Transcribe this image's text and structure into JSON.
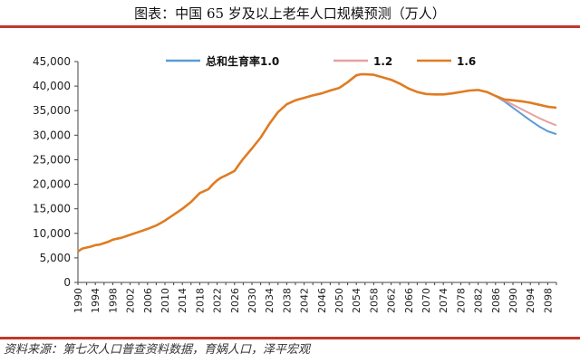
{
  "title": "图表：中国 65 岁及以上老年人口规模预测（万人）",
  "source": "资料来源：第七次人口普查资料数据，育娲人口，泽平宏观",
  "chart_data": {
    "type": "line",
    "ylim": [
      0,
      45000
    ],
    "yticks": [
      0,
      5000,
      10000,
      15000,
      20000,
      25000,
      30000,
      35000,
      40000,
      45000
    ],
    "ytick_labels": [
      "0",
      "5,000",
      "10,000",
      "15,000",
      "20,000",
      "25,000",
      "30,000",
      "35,000",
      "40,000",
      "45,000"
    ],
    "xlim": [
      1990,
      2100
    ],
    "xtick_labels": [
      "1990",
      "1994",
      "1998",
      "2002",
      "2006",
      "2010",
      "2014",
      "2018",
      "2022",
      "2026",
      "2030",
      "2034",
      "2038",
      "2042",
      "2046",
      "2050",
      "2054",
      "2058",
      "2062",
      "2066",
      "2070",
      "2074",
      "2078",
      "2082",
      "2086",
      "2090",
      "2094",
      "2098"
    ],
    "legend_position": "top",
    "grid": false,
    "series": [
      {
        "name": "总和生育率1.0",
        "color": "#5b9bd5",
        "x": [
          2086,
          2088,
          2090,
          2092,
          2094,
          2096,
          2098,
          2100
        ],
        "values": [
          38000,
          36900,
          35600,
          34300,
          33000,
          31800,
          30800,
          30200
        ]
      },
      {
        "name": "1.2",
        "color": "#e8a0a0",
        "x": [
          2086,
          2088,
          2090,
          2092,
          2094,
          2096,
          2098,
          2100
        ],
        "values": [
          38000,
          37100,
          36200,
          35300,
          34400,
          33500,
          32700,
          32000
        ]
      },
      {
        "name": "1.6",
        "color": "#e07b22",
        "x": [
          1990,
          1991,
          1992,
          1993,
          1994,
          1995,
          1996,
          1997,
          1998,
          1999,
          2000,
          2002,
          2004,
          2006,
          2008,
          2010,
          2012,
          2014,
          2016,
          2018,
          2020,
          2021,
          2022,
          2023,
          2024,
          2026,
          2027,
          2028,
          2030,
          2032,
          2034,
          2036,
          2038,
          2040,
          2042,
          2044,
          2046,
          2048,
          2050,
          2052,
          2054,
          2055,
          2056,
          2058,
          2060,
          2062,
          2064,
          2066,
          2068,
          2070,
          2072,
          2074,
          2076,
          2078,
          2080,
          2082,
          2084,
          2086,
          2088,
          2090,
          2092,
          2094,
          2096,
          2098,
          2100
        ],
        "values": [
          6300,
          6900,
          7100,
          7300,
          7600,
          7700,
          8000,
          8300,
          8700,
          8900,
          9100,
          9700,
          10300,
          10900,
          11600,
          12600,
          13800,
          15000,
          16400,
          18200,
          19000,
          20000,
          20800,
          21400,
          21800,
          22700,
          24000,
          25200,
          27300,
          29500,
          32300,
          34700,
          36300,
          37100,
          37600,
          38100,
          38500,
          39100,
          39600,
          40800,
          42200,
          42400,
          42400,
          42300,
          41800,
          41300,
          40500,
          39500,
          38800,
          38400,
          38300,
          38300,
          38500,
          38800,
          39100,
          39200,
          38800,
          38000,
          37300,
          37100,
          36900,
          36600,
          36200,
          35800,
          35600
        ]
      }
    ]
  }
}
